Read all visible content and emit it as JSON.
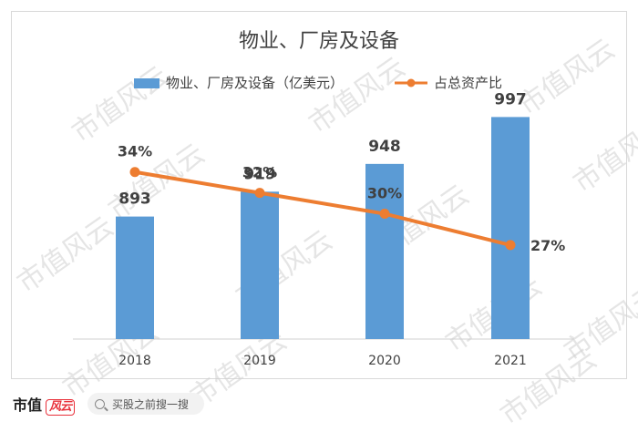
{
  "chart_data": {
    "type": "bar",
    "title": "物业、厂房及设备",
    "categories": [
      "2018",
      "2019",
      "2020",
      "2021"
    ],
    "series": [
      {
        "name": "物业、厂房及设备（亿美元）",
        "kind": "bar",
        "color": "#5b9bd5",
        "values": [
          893,
          919,
          948,
          997
        ],
        "labels": [
          "893",
          "919",
          "948",
          "997"
        ]
      },
      {
        "name": "占总资产比",
        "kind": "line",
        "color": "#ed7d31",
        "values": [
          34,
          32,
          30,
          27
        ],
        "labels": [
          "34%",
          "32%",
          "30%",
          "27%"
        ]
      }
    ],
    "bar_axis_range": [
      765,
      1005
    ],
    "line_axis_range": [
      18,
      40
    ],
    "grid": false,
    "legend_position": "top"
  },
  "watermark_text": "市值风云",
  "footer": {
    "brand": "市值",
    "brand_mark": "风云",
    "search_placeholder": "买股之前搜一搜"
  }
}
